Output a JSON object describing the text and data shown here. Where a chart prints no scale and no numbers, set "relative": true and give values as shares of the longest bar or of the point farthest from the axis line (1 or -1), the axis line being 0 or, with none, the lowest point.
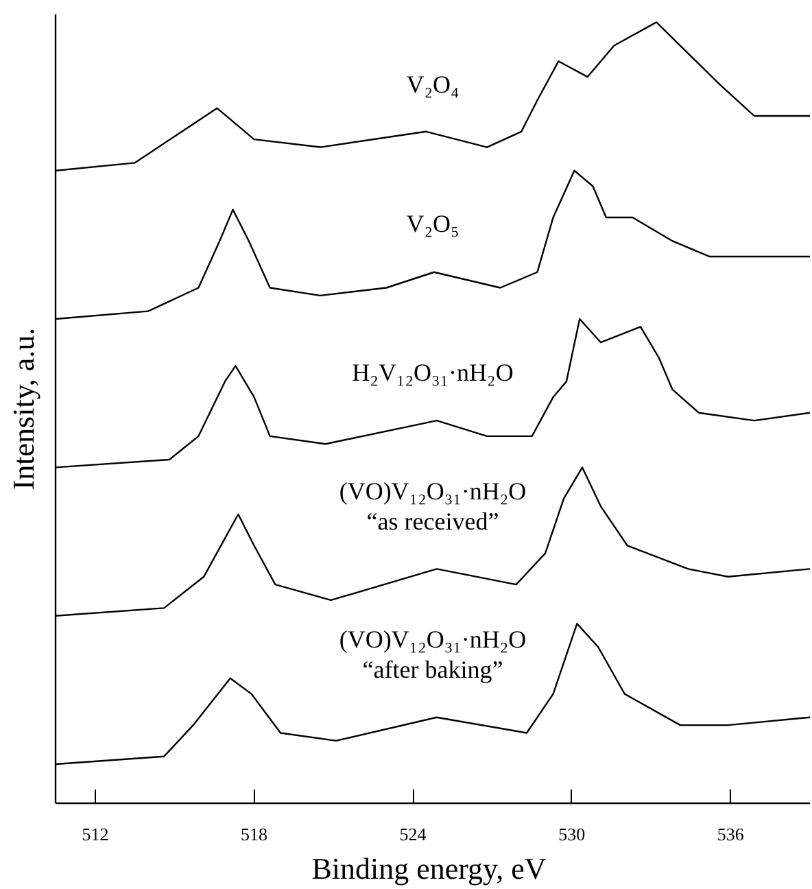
{
  "chart_data": {
    "type": "line",
    "relative": true,
    "xlabel": "Binding  energy, eV",
    "ylabel": "Intensity, a.u.",
    "xlim": [
      510.5,
      539
    ],
    "xticks": [
      512,
      518,
      524,
      530,
      536
    ],
    "tick_labels": "x",
    "grid": false,
    "marker": "none",
    "line_style": "solid",
    "series": [
      {
        "name": "V₂O₄",
        "color": "#000000",
        "x": [
          510.5,
          513.5,
          516.6,
          518.0,
          520.5,
          524.5,
          526.8,
          528.1,
          528.7,
          529.5,
          530.6,
          531.6,
          533.2,
          534.1,
          535.6,
          536.9,
          539.0
        ],
        "values": [
          0.81,
          0.82,
          0.89,
          0.85,
          0.84,
          0.86,
          0.84,
          0.86,
          0.9,
          0.95,
          0.93,
          0.97,
          1.0,
          0.97,
          0.92,
          0.88,
          0.88
        ]
      },
      {
        "name": "V₂O₅",
        "color": "#000000",
        "x": [
          510.5,
          514.0,
          515.9,
          516.7,
          517.2,
          517.8,
          518.6,
          520.5,
          523.0,
          524.8,
          527.3,
          528.7,
          529.3,
          530.1,
          530.8,
          531.3,
          532.3,
          533.8,
          535.2,
          536.7,
          539.0
        ],
        "values": [
          0.62,
          0.63,
          0.66,
          0.72,
          0.76,
          0.72,
          0.66,
          0.65,
          0.66,
          0.68,
          0.66,
          0.68,
          0.75,
          0.81,
          0.79,
          0.75,
          0.75,
          0.72,
          0.7,
          0.7,
          0.7
        ]
      },
      {
        "name": "H₂V₁₂O₃₁·nH₂O",
        "color": "#000000",
        "x": [
          510.5,
          514.8,
          515.9,
          516.9,
          517.3,
          518.0,
          518.6,
          520.7,
          524.9,
          526.8,
          528.5,
          529.3,
          529.8,
          530.3,
          531.1,
          532.6,
          533.3,
          533.8,
          534.8,
          536.9,
          539.0
        ],
        "values": [
          0.43,
          0.44,
          0.47,
          0.54,
          0.56,
          0.52,
          0.47,
          0.46,
          0.49,
          0.47,
          0.47,
          0.52,
          0.54,
          0.62,
          0.59,
          0.61,
          0.57,
          0.53,
          0.5,
          0.49,
          0.5
        ]
      },
      {
        "name": "(VO)V₁₂O₃₁·nH₂O\n“as received”",
        "color": "#000000",
        "x": [
          510.5,
          514.6,
          516.1,
          517.4,
          518.0,
          518.8,
          520.9,
          524.9,
          527.9,
          529.0,
          529.7,
          530.4,
          531.1,
          532.1,
          534.4,
          535.9,
          539.0
        ],
        "values": [
          0.24,
          0.25,
          0.29,
          0.37,
          0.33,
          0.28,
          0.26,
          0.3,
          0.28,
          0.32,
          0.39,
          0.43,
          0.38,
          0.33,
          0.3,
          0.29,
          0.3
        ]
      },
      {
        "name": "(VO)V₁₂O₃₁·nH₂O\n“after baking”",
        "color": "#000000",
        "x": [
          510.5,
          514.6,
          515.7,
          517.1,
          517.9,
          519.0,
          521.1,
          524.9,
          528.3,
          529.3,
          530.2,
          531.0,
          532.0,
          534.1,
          535.9,
          539.0
        ],
        "values": [
          0.05,
          0.06,
          0.1,
          0.16,
          0.14,
          0.09,
          0.08,
          0.11,
          0.09,
          0.14,
          0.23,
          0.2,
          0.14,
          0.1,
          0.1,
          0.11
        ]
      }
    ]
  }
}
